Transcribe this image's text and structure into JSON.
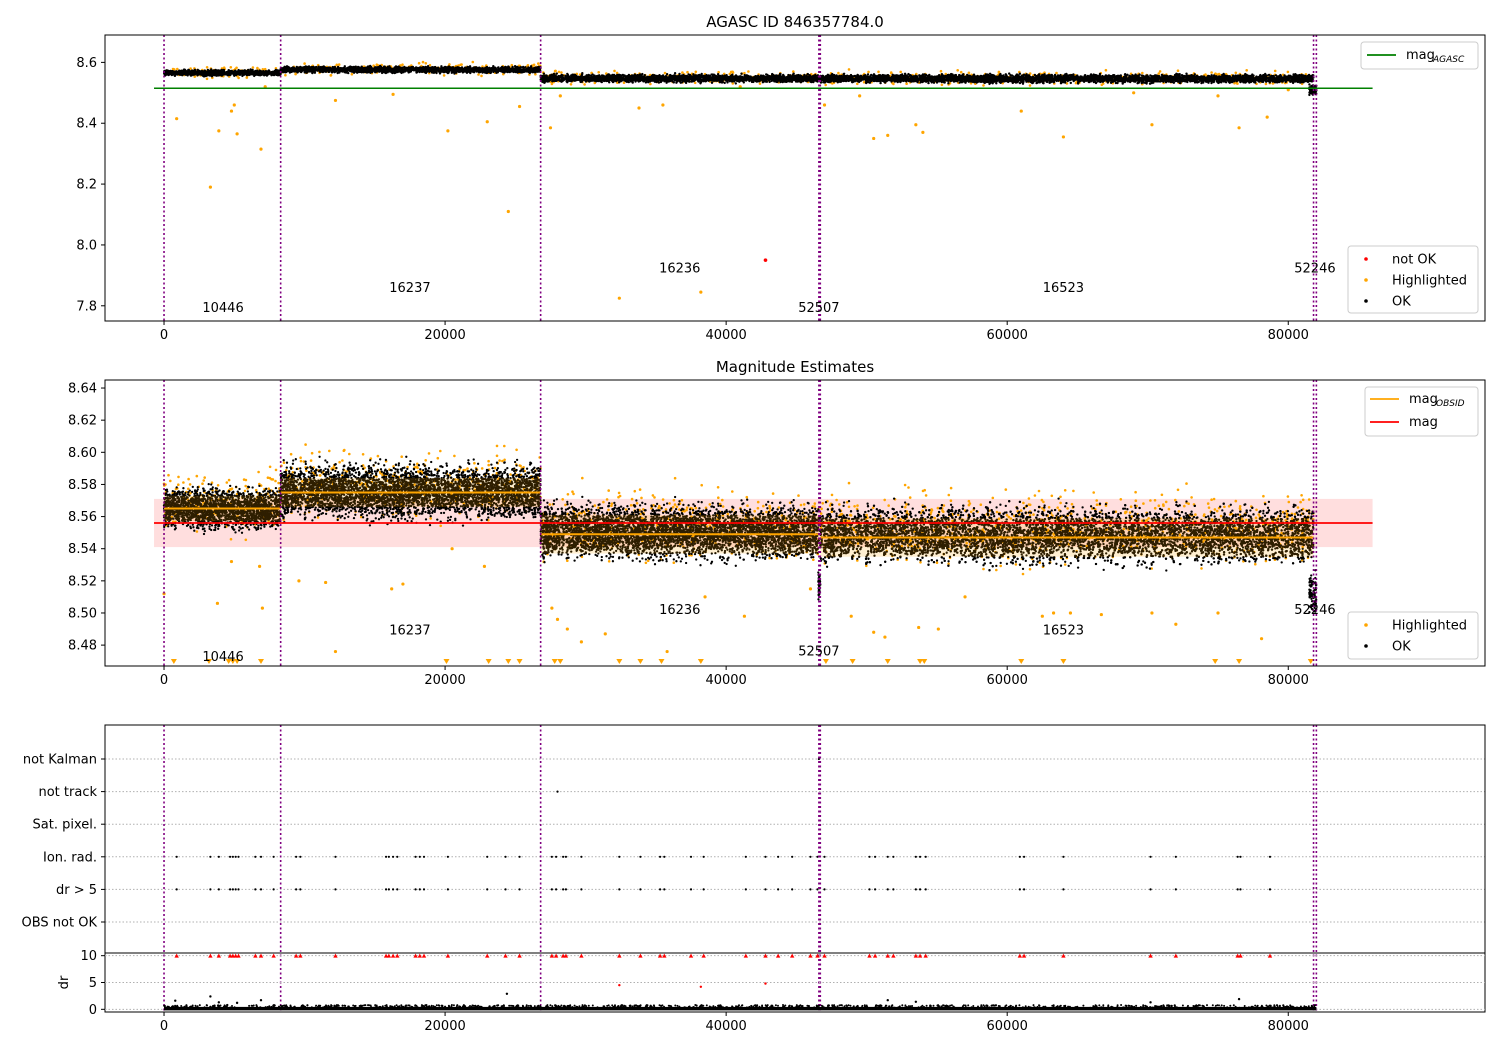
{
  "chart_data": [
    {
      "type": "scatter",
      "panel": "top",
      "title": "AGASC ID 846357784.0",
      "xlim": [
        -4200,
        94000
      ],
      "ylim": [
        7.75,
        8.69
      ],
      "xticks": [
        0,
        20000,
        40000,
        60000,
        80000
      ],
      "xtick_labels": [
        "0",
        "20000",
        "40000",
        "60000",
        "80000"
      ],
      "yticks": [
        7.8,
        8.0,
        8.2,
        8.4,
        8.6
      ],
      "ytick_labels": [
        "7.8",
        "8.0",
        "8.2",
        "8.4",
        "8.6"
      ],
      "obsid_boundaries": [
        0,
        8300,
        26800,
        46600,
        46700,
        81800,
        82000
      ],
      "obsid_labels": [
        {
          "x": 4200,
          "y": 7.78,
          "text": "10446"
        },
        {
          "x": 17500,
          "y": 7.845,
          "text": "16237"
        },
        {
          "x": 36700,
          "y": 7.91,
          "text": "16236"
        },
        {
          "x": 46600,
          "y": 7.78,
          "text": "52507"
        },
        {
          "x": 64000,
          "y": 7.845,
          "text": "16523"
        },
        {
          "x": 81900,
          "y": 7.91,
          "text": "52246"
        }
      ],
      "mag_agasc": 8.515,
      "ok_bands": [
        {
          "x0": 0,
          "x1": 8300,
          "y0": 8.553,
          "y1": 8.578
        },
        {
          "x0": 8300,
          "x1": 26800,
          "y0": 8.562,
          "y1": 8.59
        },
        {
          "x0": 26800,
          "x1": 46600,
          "y0": 8.53,
          "y1": 8.565
        },
        {
          "x0": 46700,
          "x1": 81800,
          "y0": 8.528,
          "y1": 8.565
        }
      ],
      "highlighted_outliers": [
        [
          900,
          8.415
        ],
        [
          3300,
          8.19
        ],
        [
          3900,
          8.375
        ],
        [
          4800,
          8.44
        ],
        [
          5000,
          8.46
        ],
        [
          5200,
          8.365
        ],
        [
          6900,
          8.315
        ],
        [
          7200,
          8.52
        ],
        [
          12200,
          8.475
        ],
        [
          16300,
          8.495
        ],
        [
          20200,
          8.375
        ],
        [
          23000,
          8.405
        ],
        [
          24500,
          8.11
        ],
        [
          25300,
          8.455
        ],
        [
          27500,
          8.385
        ],
        [
          28200,
          8.49
        ],
        [
          32400,
          7.825
        ],
        [
          33800,
          8.45
        ],
        [
          35500,
          8.46
        ],
        [
          38200,
          7.845
        ],
        [
          41000,
          8.52
        ],
        [
          47000,
          8.46
        ],
        [
          49500,
          8.49
        ],
        [
          50500,
          8.35
        ],
        [
          51500,
          8.36
        ],
        [
          53500,
          8.395
        ],
        [
          54000,
          8.37
        ],
        [
          61000,
          8.44
        ],
        [
          64000,
          8.355
        ],
        [
          69000,
          8.5
        ],
        [
          70300,
          8.395
        ],
        [
          75000,
          8.49
        ],
        [
          76500,
          8.385
        ],
        [
          78500,
          8.42
        ],
        [
          80000,
          8.51
        ]
      ],
      "not_ok_points": [
        [
          42800,
          7.95
        ]
      ],
      "legend_upper": [
        {
          "label": "mag",
          "sub": "AGASC",
          "color": "#008000",
          "kind": "line"
        }
      ],
      "legend_lower": [
        {
          "label": "not OK",
          "color": "#ff0000",
          "kind": "dot"
        },
        {
          "label": "Highlighted",
          "color": "#ffa500",
          "kind": "dot"
        },
        {
          "label": "OK",
          "color": "#000000",
          "kind": "dot"
        }
      ]
    },
    {
      "type": "scatter",
      "panel": "middle",
      "title": "Magnitude Estimates",
      "xlim": [
        -4200,
        94000
      ],
      "ylim": [
        8.467,
        8.645
      ],
      "xticks": [
        0,
        20000,
        40000,
        60000,
        80000
      ],
      "xtick_labels": [
        "0",
        "20000",
        "40000",
        "60000",
        "80000"
      ],
      "yticks": [
        8.48,
        8.5,
        8.52,
        8.54,
        8.56,
        8.58,
        8.6,
        8.62,
        8.64
      ],
      "ytick_labels": [
        "8.48",
        "8.50",
        "8.52",
        "8.54",
        "8.56",
        "8.58",
        "8.60",
        "8.62",
        "8.64"
      ],
      "obsid_labels": [
        {
          "x": 4200,
          "y": 8.47,
          "text": "10446"
        },
        {
          "x": 17500,
          "y": 8.4865,
          "text": "16237"
        },
        {
          "x": 36700,
          "y": 8.4995,
          "text": "16236"
        },
        {
          "x": 46600,
          "y": 8.4735,
          "text": "52507"
        },
        {
          "x": 64000,
          "y": 8.4865,
          "text": "16523"
        },
        {
          "x": 81900,
          "y": 8.4995,
          "text": "52246"
        }
      ],
      "mag": 8.556,
      "mag_band": [
        8.541,
        8.571
      ],
      "obsid_mags": [
        {
          "x0": 0,
          "x1": 8300,
          "mag": 8.565,
          "band": [
            8.557,
            8.573
          ],
          "spread": [
            8.548,
            8.582
          ]
        },
        {
          "x0": 8300,
          "x1": 26800,
          "mag": 8.575,
          "band": [
            8.566,
            8.584
          ],
          "spread": [
            8.553,
            8.598
          ]
        },
        {
          "x0": 26800,
          "x1": 46600,
          "mag": 8.549,
          "band": [
            8.537,
            8.561
          ],
          "spread": [
            8.528,
            8.573
          ]
        },
        {
          "x0": 46700,
          "x1": 81800,
          "mag": 8.547,
          "band": [
            8.535,
            8.559
          ],
          "spread": [
            8.525,
            8.572
          ]
        }
      ],
      "highlighted_outliers": [
        [
          0,
          8.512
        ],
        [
          3800,
          8.506
        ],
        [
          4800,
          8.532
        ],
        [
          6800,
          8.529
        ],
        [
          7000,
          8.503
        ],
        [
          9600,
          8.52
        ],
        [
          11500,
          8.519
        ],
        [
          12200,
          8.476
        ],
        [
          16200,
          8.515
        ],
        [
          17000,
          8.518
        ],
        [
          20500,
          8.54
        ],
        [
          22800,
          8.529
        ],
        [
          27600,
          8.503
        ],
        [
          28000,
          8.496
        ],
        [
          28700,
          8.49
        ],
        [
          29700,
          8.482
        ],
        [
          31400,
          8.487
        ],
        [
          35800,
          8.476
        ],
        [
          38500,
          8.51
        ],
        [
          41300,
          8.498
        ],
        [
          46000,
          8.515
        ],
        [
          48900,
          8.498
        ],
        [
          50500,
          8.488
        ],
        [
          51300,
          8.485
        ],
        [
          53700,
          8.491
        ],
        [
          55100,
          8.49
        ],
        [
          57000,
          8.51
        ],
        [
          62500,
          8.498
        ],
        [
          63300,
          8.5
        ],
        [
          64500,
          8.5
        ],
        [
          66700,
          8.499
        ],
        [
          70300,
          8.5
        ],
        [
          72000,
          8.493
        ],
        [
          75000,
          8.5
        ],
        [
          78100,
          8.484
        ]
      ],
      "clipped_low_x": [
        700,
        3200,
        4600,
        4900,
        5200,
        6900,
        20100,
        23100,
        24500,
        25300,
        27800,
        28200,
        32400,
        33900,
        35400,
        38200,
        47100,
        49000,
        51500,
        53800,
        54100,
        61000,
        64000,
        74800,
        76500,
        81600
      ],
      "legend_upper": [
        {
          "label": "mag",
          "sub": "OBSID",
          "color": "#ffa500",
          "kind": "line"
        },
        {
          "label": "mag",
          "sub": "",
          "color": "#ff0000",
          "kind": "line"
        }
      ],
      "legend_lower": [
        {
          "label": "Highlighted",
          "color": "#ffa500",
          "kind": "dot"
        },
        {
          "label": "OK",
          "color": "#000000",
          "kind": "dot"
        }
      ]
    },
    {
      "type": "scatter",
      "panel": "flags",
      "xlim": [
        -4200,
        94000
      ],
      "categories": [
        "not Kalman",
        "not track",
        "Sat. pixel.",
        "Ion. rad.",
        "dr > 5",
        "OBS not OK"
      ],
      "flag_events": {
        "not Kalman": [
          46600
        ],
        "not track": [
          28000
        ],
        "Sat. pixel.": [],
        "Ion. rad.": [
          900,
          3300,
          3900,
          4700,
          4900,
          5100,
          5300,
          6500,
          6900,
          7800,
          9400,
          9700,
          12200,
          15800,
          16000,
          16300,
          16600,
          17900,
          18200,
          18500,
          20200,
          23000,
          24300,
          25300,
          27600,
          27900,
          28400,
          28600,
          29700,
          32400,
          33900,
          35300,
          35600,
          37500,
          38400,
          41400,
          42800,
          43700,
          44700,
          46000,
          46500,
          47000,
          50200,
          50600,
          51500,
          51900,
          53500,
          53800,
          54200,
          60900,
          61200,
          64000,
          70200,
          72000,
          76400,
          76600,
          78700
        ],
        "dr > 5": [
          900,
          3300,
          3900,
          4700,
          4900,
          5100,
          5300,
          6500,
          6900,
          7800,
          9400,
          9700,
          12200,
          15800,
          16000,
          16300,
          16600,
          17900,
          18200,
          18500,
          20200,
          23000,
          24300,
          25300,
          27600,
          27900,
          28400,
          28600,
          29700,
          32400,
          33900,
          35300,
          35600,
          37500,
          38400,
          41400,
          42800,
          43700,
          44700,
          46000,
          46500,
          47000,
          50200,
          50600,
          51500,
          51900,
          53500,
          53800,
          54200,
          60900,
          61200,
          64000,
          70200,
          72000,
          76400,
          76600,
          78700
        ],
        "OBS not OK": []
      }
    },
    {
      "type": "scatter",
      "panel": "dr",
      "ylabel": "dr",
      "xlim": [
        -4200,
        94000
      ],
      "ylim": [
        -0.5,
        10.5
      ],
      "xticks": [
        0,
        20000,
        40000,
        60000,
        80000
      ],
      "xtick_labels": [
        "0",
        "20000",
        "40000",
        "60000",
        "80000"
      ],
      "yticks": [
        0,
        5,
        10
      ],
      "ytick_labels": [
        "0",
        "5",
        "10"
      ],
      "dr_extent": [
        0,
        82000
      ],
      "dr_small": [
        [
          800,
          1.6
        ],
        [
          3300,
          2.4
        ],
        [
          3900,
          1.3
        ],
        [
          4500,
          0.8
        ],
        [
          5200,
          1.2
        ],
        [
          6900,
          1.7
        ],
        [
          24400,
          2.9
        ],
        [
          32400,
          4.5
        ],
        [
          38200,
          4.2
        ],
        [
          42800,
          4.8
        ],
        [
          51500,
          1.7
        ],
        [
          53500,
          1.4
        ],
        [
          70200,
          1.3
        ],
        [
          76500,
          1.9
        ]
      ],
      "dr_clipped_x": [
        900,
        3300,
        3900,
        4700,
        4900,
        5100,
        5300,
        6500,
        6900,
        7800,
        9400,
        9700,
        12200,
        15800,
        16000,
        16300,
        16600,
        17900,
        18200,
        18500,
        20200,
        23000,
        24300,
        25300,
        27600,
        27900,
        28400,
        28600,
        29700,
        32400,
        33900,
        35300,
        35600,
        37500,
        38400,
        41400,
        42800,
        43700,
        44700,
        46000,
        46500,
        47000,
        50200,
        50600,
        51500,
        51900,
        53500,
        53800,
        54200,
        60900,
        61200,
        64000,
        70200,
        72000,
        76400,
        76600,
        78700
      ]
    }
  ]
}
